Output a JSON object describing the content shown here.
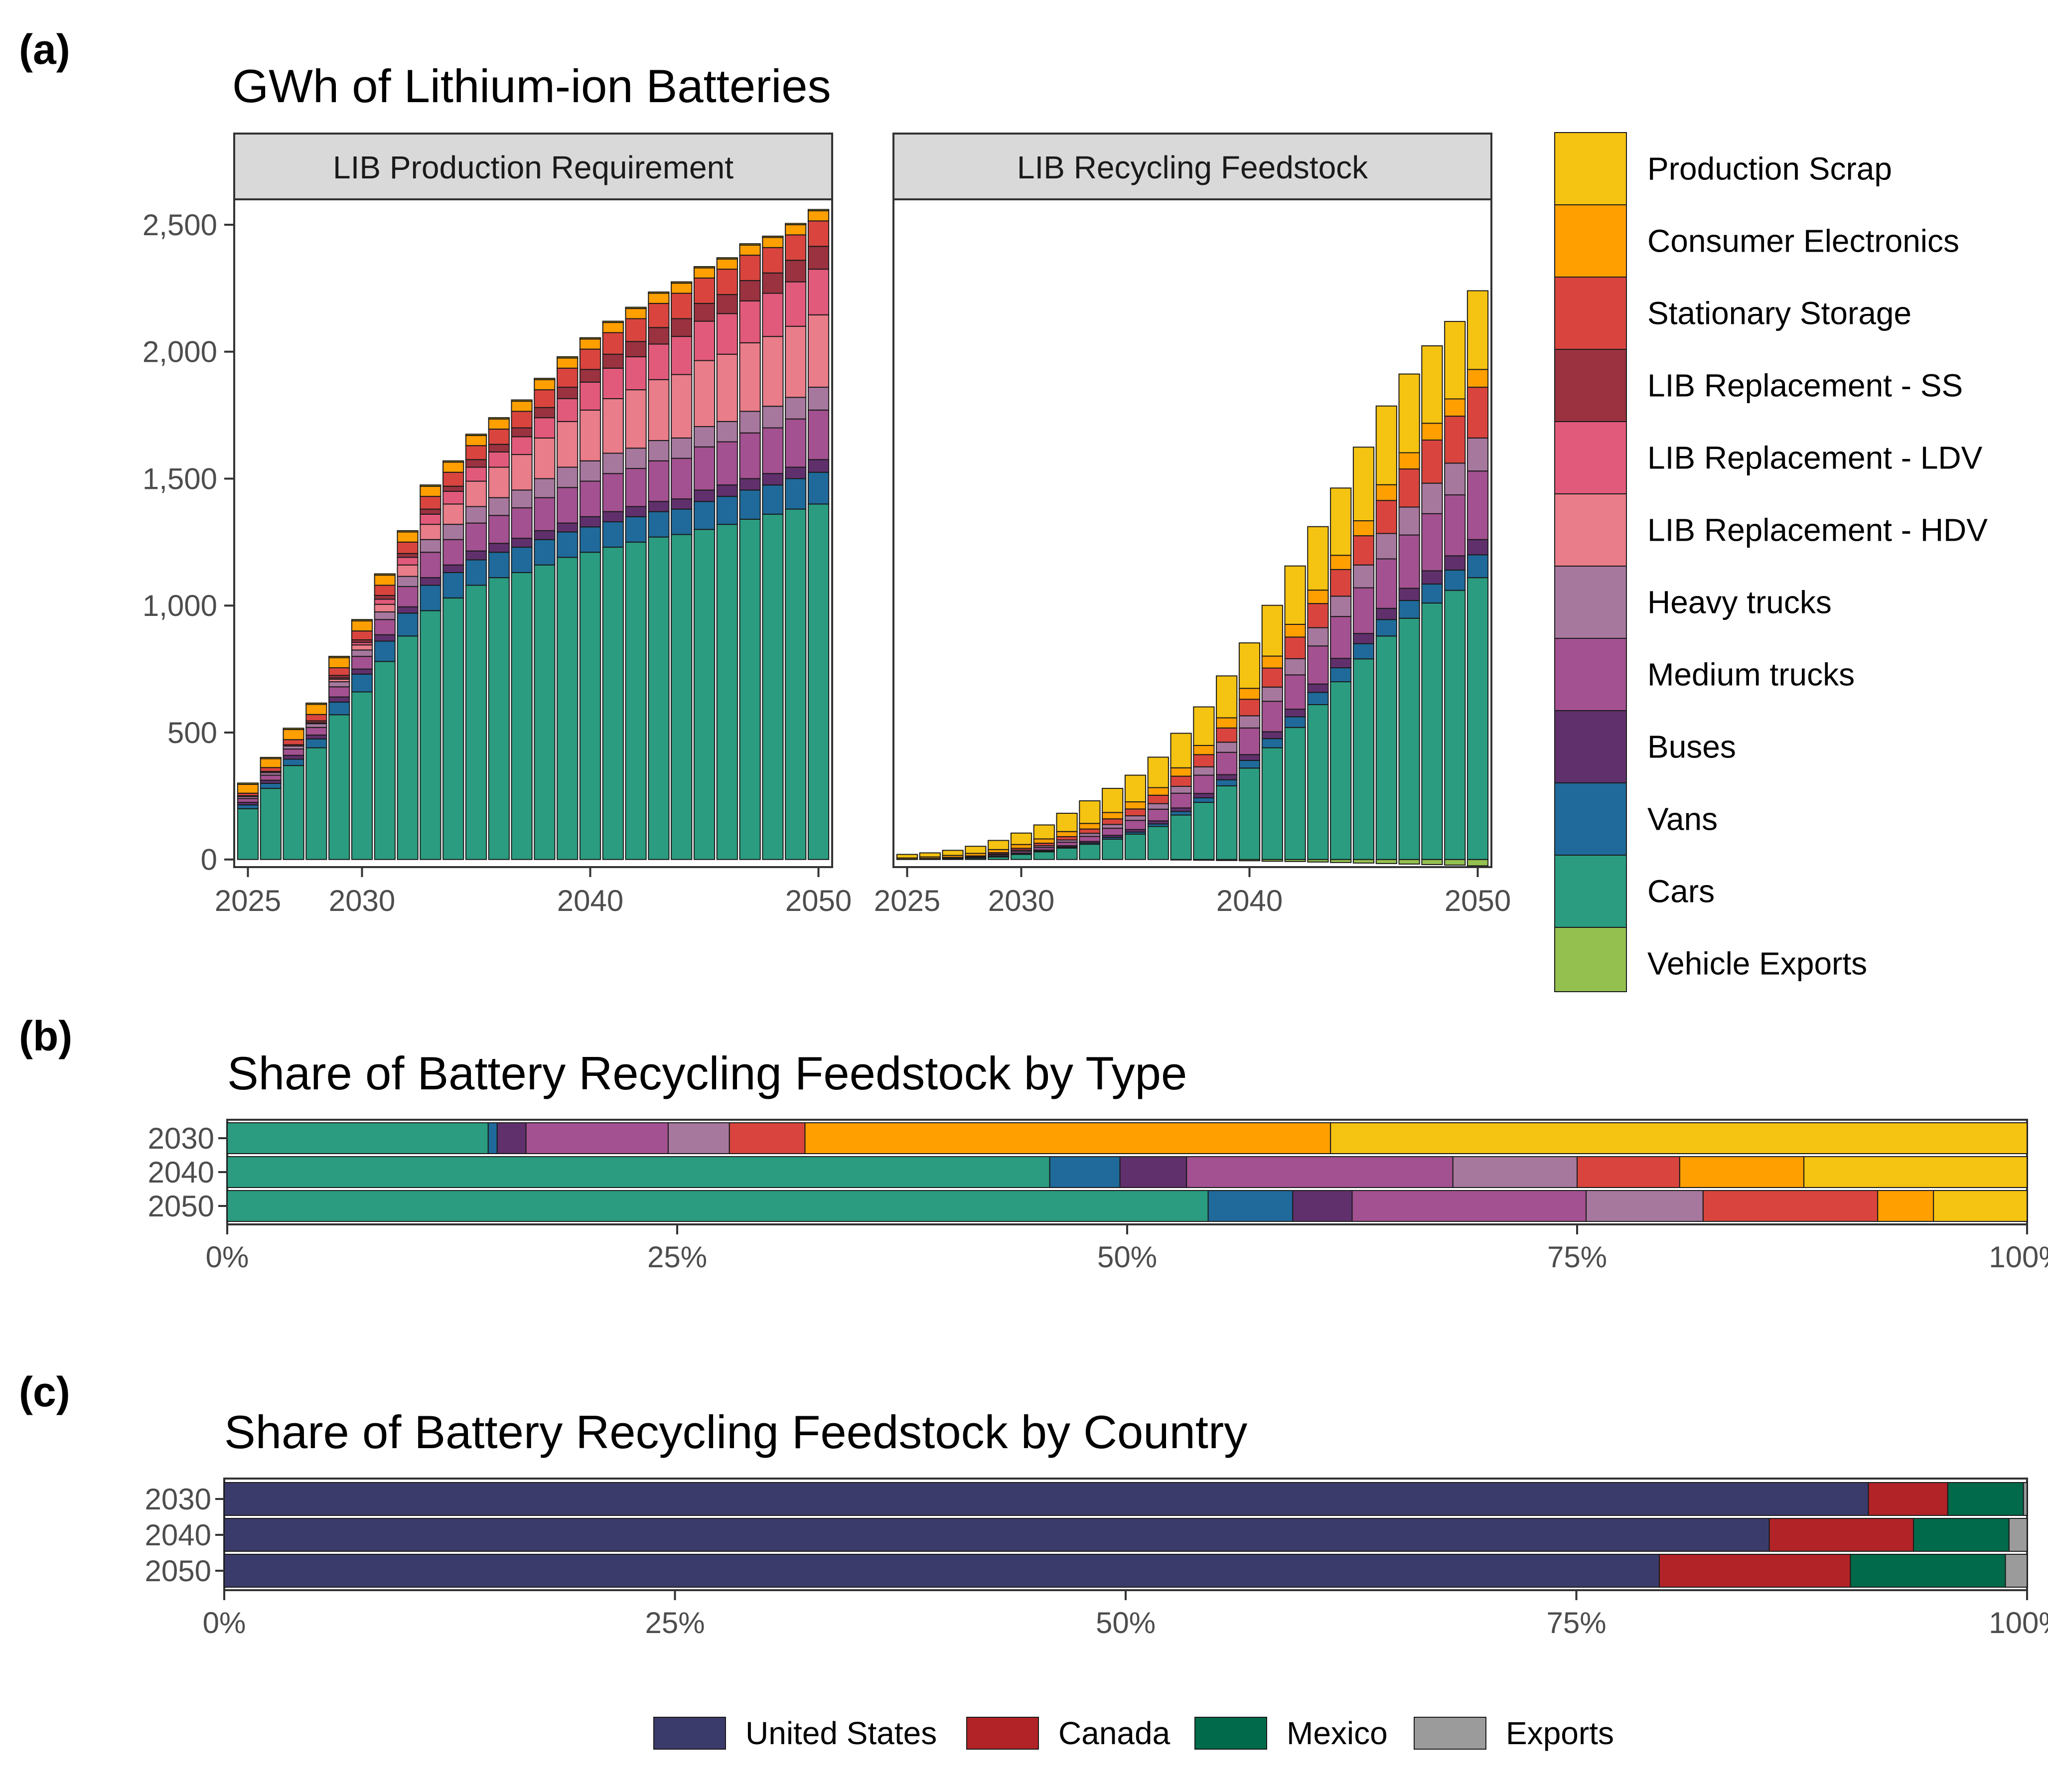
{
  "panel_labels": [
    "(a)",
    "(b)",
    "(c)"
  ],
  "titles": {
    "a": "GWh of Lithium-ion Batteries",
    "b": "Share of Battery Recycling Feedstock by Type",
    "c": "Share of Battery Recycling Feedstock by Country"
  },
  "colors": {
    "Production Scrap": "#F5C311",
    "Consumer Electronics": "#FF9F00",
    "Stationary Storage": "#D9453E",
    "LIB Replacement - SS": "#9A3240",
    "LIB Replacement - LDV": "#E25A7B",
    "LIB Replacement - HDV": "#E97D89",
    "Heavy trucks": "#A7789E",
    "Medium trucks": "#A35190",
    "Buses": "#60306C",
    "Vans": "#1F6A9A",
    "Cars": "#2B9C80",
    "Vehicle Exports": "#94C050",
    "United States": "#3B3B6B",
    "Canada": "#B22327",
    "Mexico": "#006A4A",
    "Exports": "#9B9B9B"
  },
  "chart_data": [
    {
      "type": "bar",
      "stacked": true,
      "facet": "LIB Production Requirement",
      "title": "GWh of Lithium-ion Batteries",
      "x": [
        2025,
        2026,
        2027,
        2028,
        2029,
        2030,
        2031,
        2032,
        2033,
        2034,
        2035,
        2036,
        2037,
        2038,
        2039,
        2040,
        2041,
        2042,
        2043,
        2044,
        2045,
        2046,
        2047,
        2048,
        2049,
        2050
      ],
      "x_ticks": [
        "2025",
        "2030",
        "2040",
        "2050"
      ],
      "y_ticks": [
        "0",
        "500",
        "1,000",
        "1,500",
        "2,000",
        "2,500"
      ],
      "ylim": [
        -30,
        2600
      ],
      "series": [
        {
          "name": "Cars",
          "values": [
            200,
            280,
            370,
            440,
            570,
            660,
            780,
            880,
            980,
            1030,
            1080,
            1110,
            1130,
            1160,
            1190,
            1210,
            1230,
            1250,
            1270,
            1280,
            1300,
            1320,
            1340,
            1360,
            1380,
            1400
          ]
        },
        {
          "name": "Vans",
          "values": [
            15,
            20,
            25,
            35,
            50,
            70,
            80,
            90,
            100,
            100,
            100,
            100,
            100,
            100,
            100,
            100,
            100,
            100,
            100,
            100,
            110,
            110,
            115,
            115,
            120,
            125
          ]
        },
        {
          "name": "Buses",
          "values": [
            10,
            12,
            15,
            15,
            20,
            20,
            25,
            25,
            30,
            30,
            35,
            35,
            35,
            35,
            35,
            40,
            40,
            40,
            40,
            40,
            45,
            45,
            45,
            45,
            45,
            50
          ]
        },
        {
          "name": "Medium trucks",
          "values": [
            15,
            20,
            25,
            30,
            40,
            50,
            60,
            80,
            100,
            100,
            110,
            110,
            120,
            130,
            140,
            140,
            150,
            150,
            160,
            160,
            170,
            170,
            180,
            180,
            190,
            195
          ]
        },
        {
          "name": "Heavy trucks",
          "values": [
            8,
            10,
            12,
            15,
            20,
            25,
            30,
            40,
            50,
            60,
            65,
            70,
            70,
            75,
            80,
            80,
            80,
            80,
            80,
            80,
            80,
            80,
            85,
            85,
            85,
            90
          ]
        },
        {
          "name": "LIB Replacement - HDV",
          "values": [
            0,
            0,
            0,
            3,
            10,
            20,
            30,
            45,
            60,
            80,
            100,
            120,
            140,
            160,
            180,
            200,
            215,
            230,
            240,
            250,
            260,
            265,
            270,
            275,
            280,
            285
          ]
        },
        {
          "name": "LIB Replacement - LDV",
          "values": [
            0,
            0,
            0,
            0,
            5,
            10,
            20,
            30,
            40,
            50,
            55,
            60,
            70,
            80,
            90,
            110,
            120,
            130,
            140,
            150,
            155,
            160,
            165,
            170,
            175,
            180
          ]
        },
        {
          "name": "LIB Replacement - SS",
          "values": [
            3,
            5,
            5,
            8,
            10,
            10,
            15,
            15,
            20,
            20,
            30,
            30,
            35,
            40,
            45,
            50,
            55,
            60,
            65,
            70,
            70,
            75,
            80,
            80,
            85,
            90
          ]
        },
        {
          "name": "Stationary Storage",
          "values": [
            10,
            15,
            20,
            25,
            30,
            35,
            40,
            45,
            50,
            55,
            55,
            60,
            65,
            70,
            75,
            80,
            85,
            90,
            95,
            100,
            100,
            100,
            100,
            100,
            100,
            100
          ]
        },
        {
          "name": "Consumer Electronics",
          "values": [
            35,
            35,
            40,
            40,
            40,
            40,
            40,
            40,
            40,
            40,
            40,
            40,
            40,
            40,
            40,
            40,
            40,
            40,
            40,
            40,
            40,
            40,
            40,
            40,
            40,
            40
          ]
        },
        {
          "name": "Production Scrap",
          "values": [
            5,
            5,
            5,
            5,
            5,
            5,
            5,
            5,
            5,
            5,
            5,
            5,
            5,
            5,
            5,
            5,
            5,
            5,
            5,
            5,
            5,
            5,
            5,
            5,
            5,
            5
          ]
        }
      ]
    },
    {
      "type": "bar",
      "stacked": true,
      "facet": "LIB Recycling Feedstock",
      "x": [
        2025,
        2026,
        2027,
        2028,
        2029,
        2030,
        2031,
        2032,
        2033,
        2034,
        2035,
        2036,
        2037,
        2038,
        2039,
        2040,
        2041,
        2042,
        2043,
        2044,
        2045,
        2046,
        2047,
        2048,
        2049,
        2050
      ],
      "x_ticks": [
        "2025",
        "2030",
        "2040",
        "2050"
      ],
      "ylim": [
        -30,
        2600
      ],
      "series": [
        {
          "name": "Vehicle Exports",
          "values": [
            0,
            0,
            0,
            0,
            0,
            0,
            0,
            0,
            0,
            0,
            0,
            0,
            -2,
            -3,
            -4,
            -5,
            -7,
            -8,
            -10,
            -12,
            -14,
            -16,
            -18,
            -20,
            -22,
            -25
          ]
        },
        {
          "name": "Cars",
          "values": [
            0,
            1,
            2,
            5,
            10,
            20,
            30,
            45,
            60,
            80,
            100,
            130,
            175,
            225,
            290,
            360,
            440,
            520,
            610,
            700,
            790,
            880,
            950,
            1010,
            1060,
            1110
          ]
        },
        {
          "name": "Vans",
          "values": [
            0,
            0,
            0,
            0,
            1,
            2,
            3,
            4,
            5,
            7,
            8,
            10,
            14,
            18,
            24,
            30,
            36,
            42,
            48,
            55,
            60,
            65,
            70,
            75,
            80,
            90
          ]
        },
        {
          "name": "Buses",
          "values": [
            0,
            0,
            1,
            1,
            2,
            3,
            4,
            5,
            6,
            8,
            10,
            12,
            14,
            17,
            20,
            23,
            27,
            30,
            33,
            37,
            40,
            44,
            48,
            52,
            56,
            60
          ]
        },
        {
          "name": "Medium trucks",
          "values": [
            0,
            1,
            2,
            3,
            5,
            7,
            10,
            14,
            20,
            28,
            36,
            46,
            58,
            72,
            88,
            105,
            120,
            135,
            150,
            165,
            180,
            195,
            210,
            225,
            240,
            270
          ]
        },
        {
          "name": "Heavy trucks",
          "values": [
            0,
            1,
            1,
            2,
            4,
            5,
            7,
            9,
            12,
            15,
            18,
            22,
            27,
            33,
            40,
            48,
            56,
            64,
            72,
            80,
            90,
            100,
            110,
            120,
            125,
            130
          ]
        },
        {
          "name": "Stationary Storage",
          "values": [
            1,
            1,
            2,
            3,
            5,
            7,
            10,
            13,
            17,
            22,
            27,
            33,
            40,
            48,
            56,
            65,
            75,
            85,
            95,
            105,
            115,
            130,
            150,
            170,
            185,
            200
          ]
        },
        {
          "name": "Consumer Electronics",
          "values": [
            5,
            6,
            8,
            10,
            12,
            15,
            17,
            20,
            22,
            25,
            28,
            30,
            33,
            36,
            40,
            43,
            47,
            50,
            53,
            56,
            59,
            62,
            64,
            66,
            68,
            70
          ]
        },
        {
          "name": "Production Scrap",
          "values": [
            14,
            16,
            20,
            28,
            36,
            45,
            55,
            72,
            89,
            95,
            105,
            120,
            136,
            152,
            165,
            179,
            200,
            230,
            250,
            265,
            290,
            310,
            310,
            305,
            305,
            310
          ]
        }
      ]
    },
    {
      "type": "bar",
      "orientation": "horizontal",
      "stacked": true,
      "percent": true,
      "title": "Share of Battery Recycling Feedstock by Type",
      "categories": [
        "2030",
        "2040",
        "2050"
      ],
      "x_ticks": [
        "0%",
        "25%",
        "50%",
        "75%",
        "100%"
      ],
      "xlim": [
        0,
        100
      ],
      "series": [
        {
          "name": "Cars",
          "values": [
            14.5,
            45.7,
            54.5
          ]
        },
        {
          "name": "Vans",
          "values": [
            0.5,
            3.9,
            4.7
          ]
        },
        {
          "name": "Buses",
          "values": [
            1.6,
            3.7,
            3.3
          ]
        },
        {
          "name": "Medium trucks",
          "values": [
            7.9,
            14.8,
            13.0
          ]
        },
        {
          "name": "Heavy trucks",
          "values": [
            3.4,
            6.9,
            6.5
          ]
        },
        {
          "name": "Stationary Storage",
          "values": [
            4.2,
            5.7,
            9.7
          ]
        },
        {
          "name": "Consumer Electronics",
          "values": [
            29.2,
            6.9,
            3.1
          ]
        },
        {
          "name": "Production Scrap",
          "values": [
            38.7,
            12.4,
            5.2
          ]
        }
      ]
    },
    {
      "type": "bar",
      "orientation": "horizontal",
      "stacked": true,
      "percent": true,
      "title": "Share of Battery Recycling Feedstock by Country",
      "categories": [
        "2030",
        "2040",
        "2050"
      ],
      "x_ticks": [
        "0%",
        "25%",
        "50%",
        "75%",
        "100%"
      ],
      "xlim": [
        0,
        100
      ],
      "series": [
        {
          "name": "United States",
          "values": [
            91.2,
            85.7,
            79.6
          ]
        },
        {
          "name": "Canada",
          "values": [
            4.4,
            8.0,
            10.6
          ]
        },
        {
          "name": "Mexico",
          "values": [
            4.2,
            5.3,
            8.6
          ]
        },
        {
          "name": "Exports",
          "values": [
            0.2,
            1.0,
            1.2
          ]
        }
      ]
    }
  ],
  "legend_type": [
    "Production Scrap",
    "Consumer Electronics",
    "Stationary Storage",
    "LIB Replacement - SS",
    "LIB Replacement - LDV",
    "LIB Replacement - HDV",
    "Heavy trucks",
    "Medium trucks",
    "Buses",
    "Vans",
    "Cars",
    "Vehicle Exports"
  ],
  "legend_country": [
    "United States",
    "Canada",
    "Mexico",
    "Exports"
  ]
}
